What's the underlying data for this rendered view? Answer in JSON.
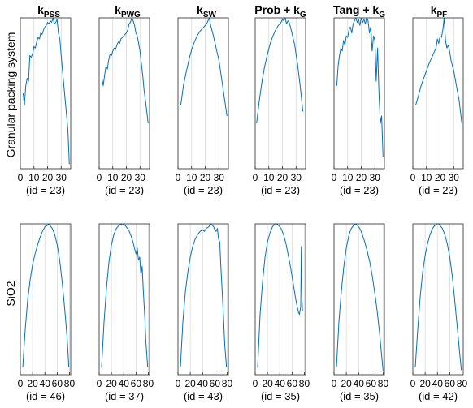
{
  "colors": {
    "series": "#0072BD",
    "grid": "#d9d9d9",
    "axis": "#262626"
  },
  "row_labels": [
    "Granular packing system",
    "SiO2"
  ],
  "column_titles": [
    {
      "main": "k",
      "sub": "PSS",
      "suffix": ""
    },
    {
      "main": "k",
      "sub": "PWG",
      "suffix": ""
    },
    {
      "main": "k",
      "sub": "SW",
      "suffix": ""
    },
    {
      "main": "Prob + k",
      "sub": "G",
      "suffix": ""
    },
    {
      "main": "Tang + k",
      "sub": "G",
      "suffix": ""
    },
    {
      "main": "k",
      "sub": "PF",
      "suffix": ""
    }
  ],
  "chart_data": [
    {
      "type": "line",
      "row": 0,
      "col": 0,
      "xlabel": "(id = 23)",
      "xlim": [
        0,
        37
      ],
      "xticks": [
        0,
        10,
        20,
        30
      ],
      "grid": "vertical",
      "x": [
        2,
        3,
        4,
        5,
        6,
        7,
        8,
        9,
        10,
        11,
        12,
        13,
        14,
        15,
        16,
        17,
        18,
        19,
        20,
        21,
        22,
        23,
        24,
        25,
        26,
        27,
        28,
        29,
        30,
        31,
        32,
        33,
        34,
        35,
        36
      ],
      "y": [
        0.5,
        0.42,
        0.55,
        0.6,
        0.58,
        0.75,
        0.74,
        0.76,
        0.81,
        0.8,
        0.84,
        0.87,
        0.86,
        0.9,
        0.89,
        0.92,
        0.94,
        0.95,
        0.97,
        0.96,
        0.98,
        0.97,
        1.0,
        0.96,
        0.97,
        0.99,
        0.9,
        0.86,
        0.75,
        0.65,
        0.55,
        0.45,
        0.35,
        0.25,
        0.03
      ]
    },
    {
      "type": "line",
      "row": 0,
      "col": 1,
      "xlabel": "(id = 23)",
      "xlim": [
        0,
        37
      ],
      "xticks": [
        0,
        10,
        20,
        30
      ],
      "grid": "vertical",
      "x": [
        2,
        3,
        4,
        5,
        6,
        7,
        8,
        9,
        10,
        11,
        12,
        13,
        14,
        15,
        16,
        17,
        18,
        19,
        20,
        21,
        22,
        23,
        24,
        25,
        26,
        27,
        28,
        29,
        30,
        31,
        32,
        33,
        34,
        35,
        36
      ],
      "y": [
        0.6,
        0.55,
        0.62,
        0.68,
        0.66,
        0.72,
        0.76,
        0.75,
        0.78,
        0.8,
        0.79,
        0.82,
        0.84,
        0.83,
        0.86,
        0.87,
        0.88,
        0.89,
        0.9,
        0.92,
        0.96,
        0.97,
        1.0,
        0.98,
        0.95,
        0.9,
        0.88,
        0.83,
        0.78,
        0.7,
        0.62,
        0.52,
        0.45,
        0.38,
        0.3
      ]
    },
    {
      "type": "line",
      "row": 0,
      "col": 2,
      "xlabel": "(id = 23)",
      "xlim": [
        0,
        37
      ],
      "xticks": [
        0,
        10,
        20,
        30
      ],
      "grid": "vertical",
      "x": [
        2,
        4,
        6,
        8,
        10,
        12,
        14,
        16,
        18,
        20,
        21,
        22,
        23,
        24,
        26,
        28,
        30,
        32,
        34,
        36
      ],
      "y": [
        0.42,
        0.55,
        0.64,
        0.72,
        0.79,
        0.84,
        0.88,
        0.91,
        0.93,
        0.95,
        0.96,
        0.98,
        1.0,
        0.95,
        0.88,
        0.8,
        0.72,
        0.6,
        0.47,
        0.35
      ]
    },
    {
      "type": "line",
      "row": 0,
      "col": 3,
      "xlabel": "(id = 23)",
      "xlim": [
        0,
        37
      ],
      "xticks": [
        0,
        10,
        20,
        30
      ],
      "grid": "vertical",
      "x": [
        1,
        3,
        5,
        7,
        9,
        11,
        13,
        15,
        17,
        19,
        20,
        21,
        22,
        23,
        24,
        25,
        27,
        29,
        31,
        33,
        35
      ],
      "y": [
        0.3,
        0.45,
        0.58,
        0.68,
        0.76,
        0.83,
        0.88,
        0.92,
        0.95,
        0.97,
        0.99,
        0.98,
        1.0,
        0.96,
        0.98,
        0.97,
        0.9,
        0.82,
        0.7,
        0.55,
        0.38
      ]
    },
    {
      "type": "line",
      "row": 0,
      "col": 4,
      "xlabel": "(id = 23)",
      "xlim": [
        0,
        37
      ],
      "xticks": [
        0,
        10,
        20,
        30
      ],
      "grid": "vertical",
      "x": [
        2,
        3,
        4,
        5,
        6,
        7,
        8,
        9,
        10,
        11,
        12,
        13,
        14,
        15,
        16,
        17,
        18,
        19,
        20,
        21,
        22,
        23,
        24,
        25,
        26,
        27,
        28,
        29,
        30,
        31,
        32,
        33,
        34,
        35,
        36
      ],
      "y": [
        0.55,
        0.68,
        0.75,
        0.8,
        0.78,
        0.85,
        0.82,
        0.88,
        0.87,
        0.92,
        0.94,
        0.9,
        0.96,
        0.98,
        1.0,
        0.97,
        0.99,
        0.95,
        1.0,
        0.97,
        0.99,
        0.96,
        1.0,
        0.98,
        0.9,
        0.94,
        0.78,
        0.88,
        0.85,
        0.58,
        0.8,
        0.5,
        0.3,
        0.35,
        0.08
      ]
    },
    {
      "type": "line",
      "row": 0,
      "col": 5,
      "xlabel": "(id = 23)",
      "xlim": [
        0,
        37
      ],
      "xticks": [
        0,
        10,
        20,
        30
      ],
      "grid": "vertical",
      "x": [
        2,
        4,
        6,
        8,
        10,
        12,
        14,
        16,
        17,
        18,
        19,
        20,
        21,
        22,
        23,
        24,
        25,
        26,
        27,
        28,
        30,
        32,
        34,
        36
      ],
      "y": [
        0.42,
        0.48,
        0.55,
        0.6,
        0.65,
        0.7,
        0.74,
        0.78,
        0.8,
        0.86,
        0.83,
        0.88,
        0.87,
        0.92,
        1.0,
        0.85,
        0.8,
        0.82,
        0.78,
        0.72,
        0.65,
        0.55,
        0.45,
        0.3
      ]
    },
    {
      "type": "line",
      "row": 1,
      "col": 0,
      "xlabel": "(id = 46)",
      "xlim": [
        0,
        82
      ],
      "xticks": [
        0,
        20,
        40,
        60,
        80
      ],
      "grid": "vertical",
      "x": [
        4,
        8,
        12,
        16,
        20,
        24,
        28,
        32,
        36,
        40,
        44,
        46,
        48,
        52,
        56,
        60,
        64,
        68,
        72,
        76,
        79
      ],
      "y": [
        0.05,
        0.3,
        0.5,
        0.63,
        0.73,
        0.8,
        0.86,
        0.91,
        0.95,
        0.98,
        0.99,
        1.0,
        0.99,
        0.97,
        0.93,
        0.86,
        0.76,
        0.62,
        0.45,
        0.25,
        0.05
      ]
    },
    {
      "type": "line",
      "row": 1,
      "col": 1,
      "xlabel": "(id = 37)",
      "xlim": [
        0,
        82
      ],
      "xticks": [
        0,
        20,
        40,
        60,
        80
      ],
      "grid": "vertical",
      "x": [
        4,
        8,
        12,
        16,
        20,
        24,
        28,
        32,
        36,
        37,
        40,
        44,
        48,
        52,
        55,
        58,
        60,
        62,
        64,
        66,
        68,
        70,
        72,
        74,
        76,
        79
      ],
      "y": [
        0.05,
        0.35,
        0.58,
        0.75,
        0.86,
        0.93,
        0.97,
        0.99,
        1.0,
        0.99,
        1.0,
        0.98,
        0.96,
        0.92,
        0.88,
        0.83,
        0.8,
        0.84,
        0.76,
        0.78,
        0.66,
        0.72,
        0.55,
        0.4,
        0.22,
        0.05
      ]
    },
    {
      "type": "line",
      "row": 1,
      "col": 2,
      "xlabel": "(id = 43)",
      "xlim": [
        0,
        82
      ],
      "xticks": [
        0,
        20,
        40,
        60,
        80
      ],
      "grid": "vertical",
      "x": [
        4,
        8,
        12,
        16,
        20,
        24,
        28,
        32,
        36,
        40,
        43,
        46,
        50,
        54,
        58,
        60,
        62,
        64,
        66,
        68,
        70,
        72,
        74,
        76,
        79
      ],
      "y": [
        0.05,
        0.35,
        0.55,
        0.68,
        0.78,
        0.85,
        0.9,
        0.93,
        0.95,
        0.96,
        0.95,
        0.97,
        0.98,
        1.0,
        0.98,
        0.96,
        0.95,
        0.97,
        0.9,
        0.88,
        0.7,
        0.55,
        0.38,
        0.2,
        0.05
      ]
    },
    {
      "type": "line",
      "row": 1,
      "col": 3,
      "xlabel": "(id = 35)",
      "xlim": [
        0,
        82
      ],
      "xticks": [
        0,
        20,
        40,
        60,
        80
      ],
      "grid": "vertical",
      "x": [
        4,
        8,
        12,
        16,
        20,
        24,
        28,
        32,
        35,
        38,
        42,
        46,
        50,
        54,
        58,
        62,
        66,
        70,
        72,
        74,
        75,
        76,
        77
      ],
      "y": [
        0.05,
        0.4,
        0.62,
        0.78,
        0.88,
        0.94,
        0.98,
        1.0,
        1.0,
        0.99,
        0.97,
        0.93,
        0.87,
        0.79,
        0.7,
        0.6,
        0.5,
        0.42,
        0.4,
        0.45,
        0.85,
        0.5,
        0.42
      ]
    },
    {
      "type": "line",
      "row": 1,
      "col": 4,
      "xlabel": "(id = 35)",
      "xlim": [
        0,
        82
      ],
      "xticks": [
        0,
        20,
        40,
        60,
        80
      ],
      "grid": "vertical",
      "x": [
        4,
        8,
        12,
        16,
        20,
        24,
        28,
        32,
        35,
        38,
        42,
        46,
        50,
        54,
        58,
        62,
        66,
        70,
        74,
        77,
        80
      ],
      "y": [
        0.05,
        0.35,
        0.56,
        0.72,
        0.84,
        0.92,
        0.97,
        0.99,
        1.0,
        0.99,
        0.97,
        0.93,
        0.88,
        0.82,
        0.75,
        0.66,
        0.55,
        0.43,
        0.28,
        0.15,
        0.02
      ]
    },
    {
      "type": "line",
      "row": 1,
      "col": 5,
      "xlabel": "(id = 42)",
      "xlim": [
        0,
        82
      ],
      "xticks": [
        0,
        20,
        40,
        60,
        80
      ],
      "grid": "vertical",
      "x": [
        4,
        8,
        12,
        16,
        20,
        24,
        28,
        32,
        36,
        40,
        42,
        44,
        48,
        52,
        56,
        60,
        64,
        68,
        72,
        76,
        79
      ],
      "y": [
        0.05,
        0.3,
        0.52,
        0.68,
        0.79,
        0.87,
        0.93,
        0.97,
        0.99,
        1.0,
        1.0,
        0.99,
        0.97,
        0.93,
        0.87,
        0.78,
        0.66,
        0.5,
        0.33,
        0.15,
        0.03
      ]
    }
  ]
}
